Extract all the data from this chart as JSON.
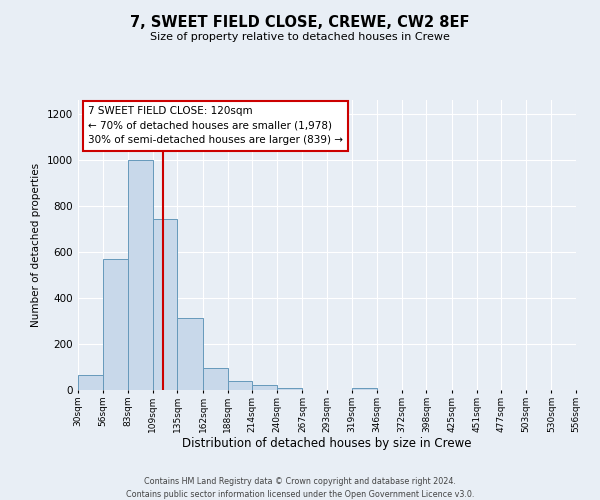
{
  "title": "7, SWEET FIELD CLOSE, CREWE, CW2 8EF",
  "subtitle": "Size of property relative to detached houses in Crewe",
  "xlabel": "Distribution of detached houses by size in Crewe",
  "ylabel": "Number of detached properties",
  "bar_color": "#c8d8ea",
  "bar_edge_color": "#6699bb",
  "background_color": "#e8eef5",
  "grid_color": "#ffffff",
  "bin_edges": [
    30,
    56,
    83,
    109,
    135,
    162,
    188,
    214,
    240,
    267,
    293,
    319,
    346,
    372,
    398,
    425,
    451,
    477,
    503,
    530,
    556
  ],
  "bin_labels": [
    "30sqm",
    "56sqm",
    "83sqm",
    "109sqm",
    "135sqm",
    "162sqm",
    "188sqm",
    "214sqm",
    "240sqm",
    "267sqm",
    "293sqm",
    "319sqm",
    "346sqm",
    "372sqm",
    "398sqm",
    "425sqm",
    "451sqm",
    "477sqm",
    "503sqm",
    "530sqm",
    "556sqm"
  ],
  "bar_heights": [
    65,
    570,
    1000,
    745,
    315,
    95,
    40,
    20,
    10,
    0,
    0,
    10,
    0,
    0,
    0,
    0,
    0,
    0,
    0,
    0
  ],
  "ylim": [
    0,
    1260
  ],
  "yticks": [
    0,
    200,
    400,
    600,
    800,
    1000,
    1200
  ],
  "vline_x": 120,
  "vline_color": "#cc0000",
  "annotation_title": "7 SWEET FIELD CLOSE: 120sqm",
  "annotation_line1": "← 70% of detached houses are smaller (1,978)",
  "annotation_line2": "30% of semi-detached houses are larger (839) →",
  "annotation_box_color": "#ffffff",
  "annotation_box_edge": "#cc0000",
  "footer_line1": "Contains HM Land Registry data © Crown copyright and database right 2024.",
  "footer_line2": "Contains public sector information licensed under the Open Government Licence v3.0."
}
